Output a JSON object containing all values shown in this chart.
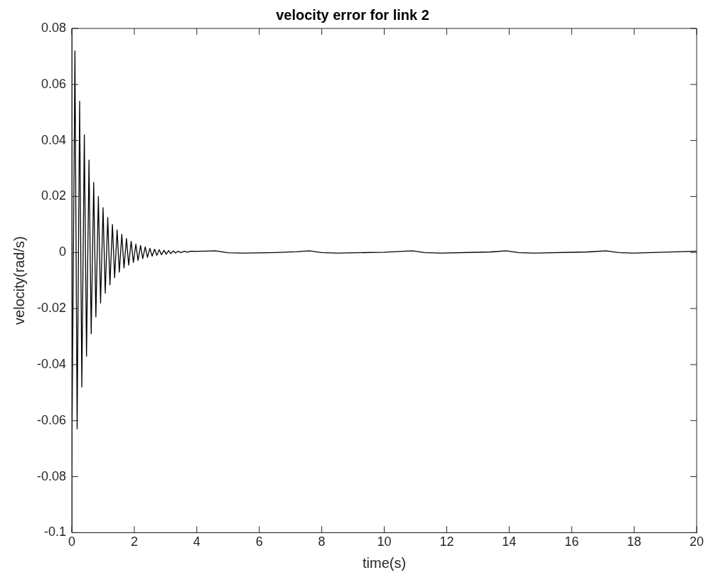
{
  "chart_data": {
    "type": "line",
    "title": "velocity error for link 2",
    "xlabel": "time(s)",
    "ylabel": "velocity(rad/s)",
    "xlim": [
      0,
      20
    ],
    "xticks": [
      0,
      2,
      4,
      6,
      8,
      10,
      12,
      14,
      16,
      18,
      20
    ],
    "ylim": [
      -0.1,
      0.08
    ],
    "yticks": [
      -0.1,
      -0.08,
      -0.06,
      -0.04,
      -0.02,
      0,
      0.02,
      0.04,
      0.06,
      0.08
    ],
    "grid": false,
    "legend": false,
    "marker": "none",
    "line_style": "solid",
    "series": [
      {
        "color": "#000000",
        "x": [
          0,
          0.1,
          0.17,
          0.25,
          0.32,
          0.4,
          0.47,
          0.55,
          0.62,
          0.7,
          0.77,
          0.85,
          0.92,
          1.0,
          1.07,
          1.15,
          1.22,
          1.3,
          1.37,
          1.45,
          1.52,
          1.6,
          1.67,
          1.75,
          1.82,
          1.9,
          1.97,
          2.05,
          2.12,
          2.2,
          2.27,
          2.35,
          2.42,
          2.5,
          2.57,
          2.65,
          2.72,
          2.8,
          2.87,
          2.95,
          3.02,
          3.1,
          3.17,
          3.25,
          3.32,
          3.4,
          3.5,
          3.6,
          3.7,
          3.8,
          4.0,
          4.6,
          5.0,
          5.5,
          6.5,
          7.2,
          7.6,
          8.0,
          8.5,
          10.0,
          10.9,
          11.3,
          11.8,
          13.4,
          13.9,
          14.3,
          14.8,
          16.5,
          17.1,
          17.5,
          18.0,
          20
        ],
        "values": [
          -0.075,
          0.072,
          -0.063,
          0.054,
          -0.048,
          0.042,
          -0.037,
          0.033,
          -0.029,
          0.025,
          -0.023,
          0.02,
          -0.018,
          0.016,
          -0.0145,
          0.0125,
          -0.0115,
          0.01,
          -0.009,
          0.008,
          -0.007,
          0.0065,
          -0.0055,
          0.005,
          -0.0045,
          0.004,
          -0.0035,
          0.003,
          -0.0028,
          0.0025,
          -0.0022,
          0.002,
          -0.0017,
          0.0015,
          -0.0013,
          0.0012,
          -0.001,
          0.001,
          -0.0008,
          0.0008,
          -0.0006,
          0.0007,
          -0.0004,
          0.0006,
          -0.0002,
          0.0005,
          0,
          0.0005,
          0.0001,
          0.0005,
          0.0004,
          0.0006,
          -0.0001,
          -0.0002,
          0,
          0.0003,
          0.0006,
          0,
          -0.0002,
          0.0001,
          0.0006,
          0,
          -0.0002,
          0.0002,
          0.0006,
          0,
          -0.0002,
          0.0002,
          0.0006,
          0,
          -0.0002,
          0.0005
        ]
      }
    ]
  }
}
